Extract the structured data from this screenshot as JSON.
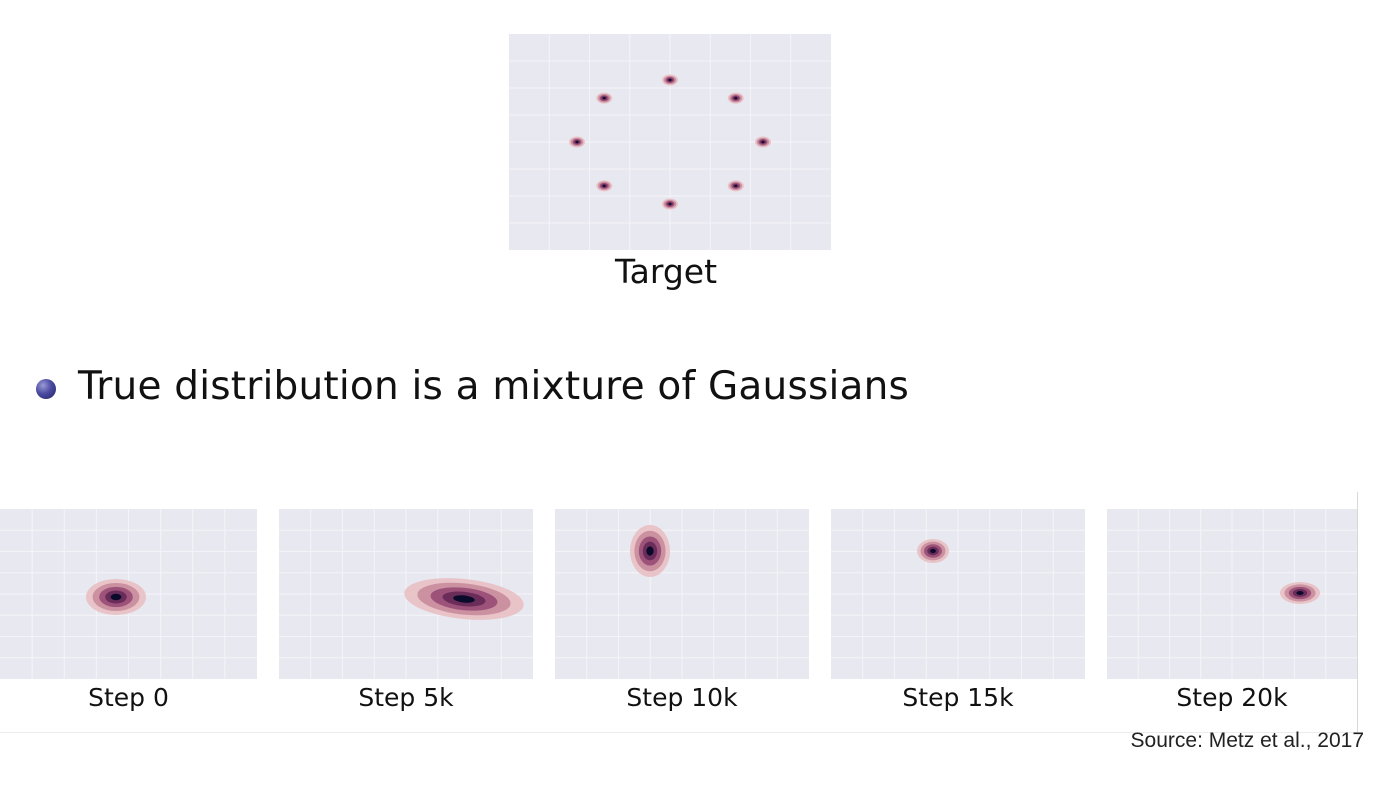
{
  "target": {
    "caption": "Target"
  },
  "bullet": {
    "text": "True distribution is a mixture of Gaussians"
  },
  "steps": [
    {
      "caption": "Step 0"
    },
    {
      "caption": "Step 5k"
    },
    {
      "caption": "Step 10k"
    },
    {
      "caption": "Step 15k"
    },
    {
      "caption": "Step 20k"
    }
  ],
  "source": "Source:  Metz et al., 2017",
  "colors": {
    "plot_background": "#e8e8f0",
    "density_core": "#0a0a2a",
    "density_mid": "#6a2d5a",
    "density_outer": "#e7bcc0",
    "bullet": "#3a3a8a"
  }
}
